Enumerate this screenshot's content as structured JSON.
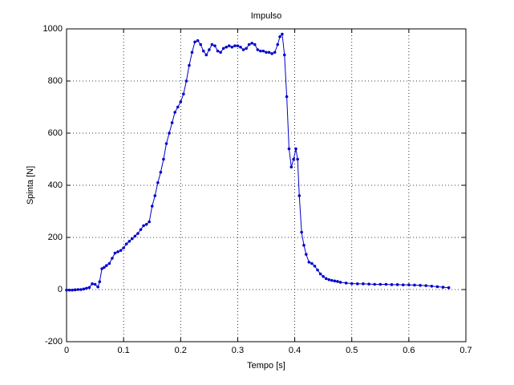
{
  "chart_data": {
    "type": "line",
    "title": "Impulso",
    "xlabel": "Tempo [s]",
    "ylabel": "Spinta [N]",
    "x": [
      0,
      0.005,
      0.01,
      0.015,
      0.02,
      0.025,
      0.03,
      0.035,
      0.04,
      0.045,
      0.05,
      0.055,
      0.058,
      0.062,
      0.066,
      0.07,
      0.075,
      0.08,
      0.085,
      0.09,
      0.095,
      0.1,
      0.105,
      0.11,
      0.115,
      0.12,
      0.125,
      0.13,
      0.135,
      0.14,
      0.145,
      0.15,
      0.155,
      0.16,
      0.165,
      0.17,
      0.175,
      0.18,
      0.185,
      0.19,
      0.195,
      0.2,
      0.205,
      0.21,
      0.215,
      0.22,
      0.225,
      0.23,
      0.235,
      0.24,
      0.245,
      0.25,
      0.255,
      0.26,
      0.265,
      0.27,
      0.275,
      0.28,
      0.285,
      0.29,
      0.295,
      0.3,
      0.305,
      0.31,
      0.315,
      0.32,
      0.325,
      0.33,
      0.335,
      0.34,
      0.345,
      0.35,
      0.355,
      0.36,
      0.365,
      0.37,
      0.374,
      0.378,
      0.382,
      0.386,
      0.39,
      0.394,
      0.398,
      0.402,
      0.405,
      0.408,
      0.412,
      0.416,
      0.42,
      0.425,
      0.43,
      0.435,
      0.44,
      0.445,
      0.45,
      0.455,
      0.46,
      0.465,
      0.47,
      0.475,
      0.48,
      0.49,
      0.5,
      0.51,
      0.52,
      0.53,
      0.54,
      0.55,
      0.56,
      0.57,
      0.58,
      0.59,
      0.6,
      0.61,
      0.62,
      0.63,
      0.64,
      0.65,
      0.66,
      0.67
    ],
    "values": [
      -2,
      -2,
      -2,
      -1,
      0,
      0,
      2,
      5,
      8,
      22,
      20,
      10,
      30,
      80,
      85,
      92,
      100,
      120,
      140,
      145,
      150,
      160,
      175,
      185,
      195,
      205,
      215,
      230,
      245,
      250,
      260,
      320,
      360,
      410,
      450,
      500,
      560,
      600,
      640,
      680,
      700,
      720,
      750,
      800,
      860,
      910,
      950,
      955,
      940,
      915,
      900,
      920,
      940,
      935,
      915,
      910,
      925,
      930,
      935,
      930,
      935,
      935,
      930,
      920,
      925,
      940,
      945,
      940,
      920,
      915,
      915,
      910,
      910,
      905,
      910,
      940,
      970,
      980,
      900,
      740,
      540,
      470,
      500,
      540,
      500,
      360,
      220,
      170,
      135,
      105,
      100,
      90,
      75,
      60,
      50,
      42,
      38,
      35,
      33,
      31,
      28,
      25,
      23,
      22,
      22,
      21,
      20,
      20,
      20,
      19,
      19,
      18,
      18,
      17,
      16,
      15,
      13,
      11,
      9,
      7
    ],
    "color": "#0000cc",
    "xlim": [
      0,
      0.7
    ],
    "xticks": [
      0,
      0.1,
      0.2,
      0.3,
      0.4,
      0.5,
      0.6,
      0.7
    ],
    "ylim": [
      -200,
      1000
    ],
    "yticks": [
      -200,
      0,
      200,
      400,
      600,
      800,
      1000
    ],
    "grid": true
  }
}
